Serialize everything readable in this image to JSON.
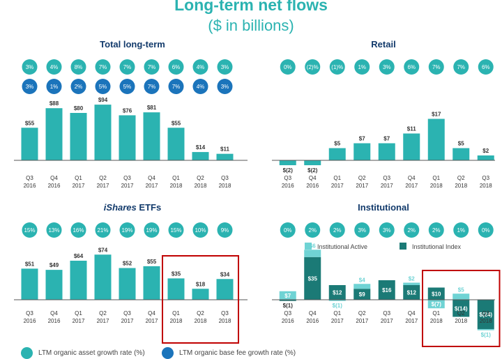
{
  "header": {
    "title": "Long-term net flows",
    "subtitle": "($ in billions)"
  },
  "colors": {
    "teal": "#2bb3b1",
    "teal_light": "#6fd3d4",
    "blue": "#1b74bb",
    "dark_teal": "#1b7a76",
    "highlight_box": "#c00000"
  },
  "legend": {
    "organic_asset": "LTM organic asset growth rate (%)",
    "organic_base_fee": "LTM organic base fee growth rate (%)"
  },
  "chart_data": [
    {
      "id": "total-long-term",
      "type": "bar",
      "title": "Total long-term",
      "categories": [
        "Q3\n2016",
        "Q4\n2016",
        "Q1\n2017",
        "Q2\n2017",
        "Q3\n2017",
        "Q4\n2017",
        "Q1\n2018",
        "Q2\n2018",
        "Q3\n2018"
      ],
      "values": [
        55,
        88,
        80,
        94,
        76,
        81,
        55,
        14,
        11
      ],
      "value_labels": [
        "$55",
        "$88",
        "$80",
        "$94",
        "$76",
        "$81",
        "$55",
        "$14",
        "$11"
      ],
      "ylim": [
        0,
        100
      ],
      "bubbles_asset": [
        "3%",
        "4%",
        "8%",
        "7%",
        "7%",
        "7%",
        "6%",
        "4%",
        "3%"
      ],
      "bubbles_fee": [
        "3%",
        "1%",
        "2%",
        "5%",
        "5%",
        "7%",
        "7%",
        "4%",
        "3%"
      ]
    },
    {
      "id": "retail",
      "type": "bar",
      "title": "Retail",
      "categories": [
        "Q3\n2016",
        "Q4\n2016",
        "Q1\n2017",
        "Q2\n2017",
        "Q3\n2017",
        "Q4\n2017",
        "Q1\n2018",
        "Q2\n2018",
        "Q3\n2018"
      ],
      "values": [
        -2,
        -2,
        5,
        7,
        7,
        11,
        17,
        5,
        2
      ],
      "value_labels": [
        "$(2)",
        "$(2)",
        "$5",
        "$7",
        "$7",
        "$11",
        "$17",
        "$5",
        "$2"
      ],
      "ylim": [
        -4,
        20
      ],
      "bubbles_asset": [
        "0%",
        "(2)%",
        "(1)%",
        "1%",
        "3%",
        "6%",
        "7%",
        "7%",
        "6%"
      ]
    },
    {
      "id": "ishares-etfs",
      "type": "bar",
      "title": "iShares ETFs",
      "title_italic_part": "iShares",
      "title_rest": " ETFs",
      "categories": [
        "Q3\n2016",
        "Q4\n2016",
        "Q1\n2017",
        "Q2\n2017",
        "Q3\n2017",
        "Q4\n2017",
        "Q1\n2018",
        "Q2\n2018",
        "Q3\n2018"
      ],
      "values": [
        51,
        49,
        64,
        74,
        52,
        55,
        35,
        18,
        34
      ],
      "value_labels": [
        "$51",
        "$49",
        "$64",
        "$74",
        "$52",
        "$55",
        "$35",
        "$18",
        "$34"
      ],
      "ylim": [
        0,
        80
      ],
      "bubbles_asset": [
        "15%",
        "13%",
        "16%",
        "21%",
        "19%",
        "19%",
        "15%",
        "10%",
        "9%"
      ],
      "highlight": [
        6,
        8
      ]
    },
    {
      "id": "institutional",
      "type": "bar",
      "title": "Institutional",
      "categories": [
        "Q3\n2016",
        "Q4\n2016",
        "Q1\n2017",
        "Q2\n2017",
        "Q3\n2017",
        "Q4\n2017",
        "Q1\n2018",
        "Q2\n2018",
        "Q3\n2018"
      ],
      "series": [
        {
          "name": "Institutional Active",
          "values": [
            7,
            6,
            -1,
            4,
            0,
            2,
            -7,
            5,
            -1
          ],
          "labels": [
            "$7",
            "$6",
            "$(1)",
            "$4",
            "",
            "$2",
            "$(7)",
            "$5",
            "$(1)"
          ]
        },
        {
          "name": "Institutional Index",
          "values": [
            -1,
            35,
            12,
            9,
            16,
            12,
            10,
            -14,
            -24
          ],
          "labels": [
            "$(1)",
            "$35",
            "$12",
            "$9",
            "$16",
            "$12",
            "$10",
            "$(14)",
            "$(24)"
          ]
        }
      ],
      "ylim": [
        -28,
        40
      ],
      "bubbles_asset": [
        "0%",
        "2%",
        "2%",
        "3%",
        "3%",
        "2%",
        "2%",
        "1%",
        "0%"
      ],
      "highlight": [
        6,
        8
      ]
    }
  ]
}
